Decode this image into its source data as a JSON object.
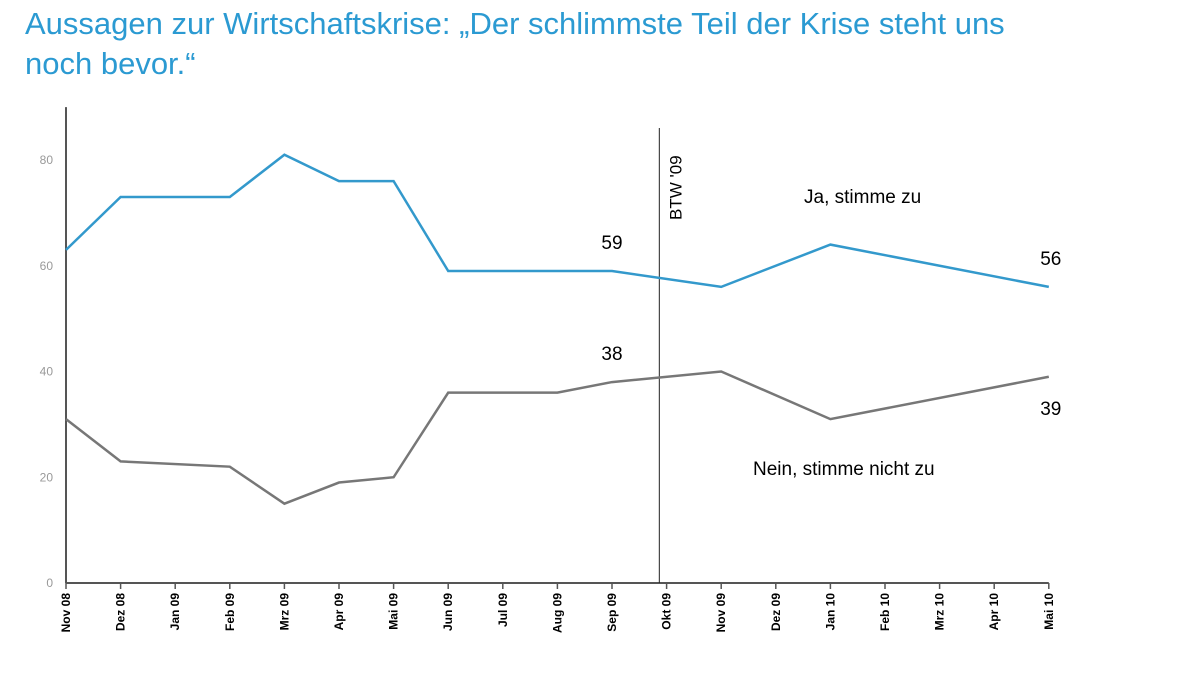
{
  "chart_data": {
    "type": "line",
    "title": "Aussagen zur Wirtschaftskrise: „Der schlimmste Teil der Krise steht uns noch bevor.“",
    "xlabel": "",
    "ylabel": "",
    "ylim": [
      0,
      90
    ],
    "yticks": [
      0,
      20,
      40,
      60,
      80
    ],
    "grid": false,
    "categories": [
      "Nov 08",
      "Dez 08",
      "Jan 09",
      "Feb 09",
      "Mrz 09",
      "Apr 09",
      "Mai 09",
      "Jun 09",
      "Jul 09",
      "Aug 09",
      "Sep 09",
      "Okt 09",
      "Nov 09",
      "Dez 09",
      "Jan 10",
      "Feb 10",
      "Mrz 10",
      "Apr 10",
      "Mai 10"
    ],
    "series": [
      {
        "name": "Ja, stimme zu",
        "color": "#3399cc",
        "values": [
          63,
          73,
          null,
          73,
          81,
          76,
          76,
          59,
          null,
          null,
          59,
          null,
          56,
          null,
          64,
          null,
          null,
          null,
          56
        ]
      },
      {
        "name": "Nein, stimme nicht zu",
        "color": "#777777",
        "values": [
          31,
          23,
          null,
          22,
          15,
          19,
          20,
          36,
          null,
          36,
          38,
          null,
          40,
          null,
          31,
          null,
          null,
          null,
          39
        ]
      }
    ],
    "data_labels": [
      {
        "series": 0,
        "category": "Sep 09",
        "text": "59"
      },
      {
        "series": 0,
        "category": "Mai 10",
        "text": "56"
      },
      {
        "series": 1,
        "category": "Sep 09",
        "text": "38"
      },
      {
        "series": 1,
        "category": "Mai 10",
        "text": "39"
      }
    ],
    "annotation": {
      "text": "BTW '09",
      "date": "2009-09-27"
    }
  }
}
